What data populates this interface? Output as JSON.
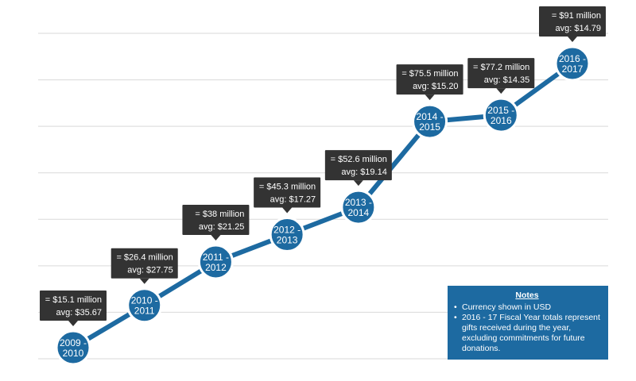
{
  "chart_data": {
    "type": "line",
    "title": "",
    "xlabel": "",
    "ylabel": "",
    "categories": [
      "2009 - 2010",
      "2010 - 2011",
      "2011 - 2012",
      "2012 - 2013",
      "2013 - 2014",
      "2014 - 2015",
      "2015 - 2016",
      "2016 - 2017"
    ],
    "category_lines": [
      [
        "2009 -",
        "2010"
      ],
      [
        "2010 -",
        "2011"
      ],
      [
        "2011 -",
        "2012"
      ],
      [
        "2012 -",
        "2013"
      ],
      [
        "2013 -",
        "2014"
      ],
      [
        "2014 -",
        "2015"
      ],
      [
        "2015 -",
        "2016"
      ],
      [
        "2016 -",
        "2017"
      ]
    ],
    "series": [
      {
        "values": [
          15.1,
          26.4,
          38,
          45.3,
          52.6,
          75.5,
          77.2,
          91
        ]
      }
    ],
    "total_labels": [
      "= $15.1 million",
      "= $26.4 million",
      "= $38 million",
      "= $45.3 million",
      "= $52.6 million",
      "= $75.5 million",
      "= $77.2 million",
      "= $91 million"
    ],
    "avg_labels": [
      "avg: $35.67",
      "avg: $27.75",
      "avg: $21.25",
      "avg: $17.27",
      "avg: $19.14",
      "avg: $15.20",
      "avg: $14.35",
      "avg: $14.79"
    ],
    "ylim": [
      0,
      100
    ],
    "grid": true,
    "colors": {
      "line": "#1d6aa1",
      "point": "#1d6aa1",
      "tooltip": "#333333",
      "grid": "#d9d9d9"
    }
  },
  "notes": {
    "title": "Notes",
    "items": [
      "Currency shown in USD",
      "2016 - 17 Fiscal Year totals represent gifts received during the year, excluding commitments for future donations."
    ]
  }
}
